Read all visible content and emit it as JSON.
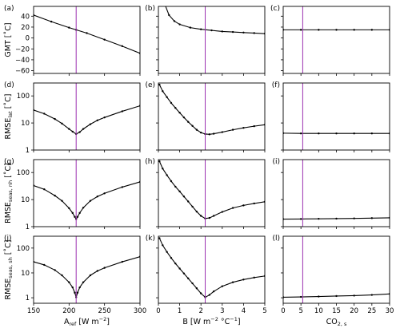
{
  "chart_data": {
    "type": "line",
    "marker_color": "#000000",
    "line_color": "#000000",
    "vline_color": "#9b30b0",
    "columns": [
      {
        "xlabel_main": "A",
        "xlabel_sub": "ref",
        "xlabel_units": " [W m",
        "xlabel_units_exp": "−2",
        "xlabel_units_end": "]",
        "xlim": [
          150,
          300
        ],
        "xticks": [
          150,
          200,
          250,
          300
        ],
        "xtick_labels": [
          "150",
          "200",
          "250",
          "300"
        ],
        "vline_x": 210
      },
      {
        "xlabel_main": "B [W m",
        "xlabel_sub": "",
        "xlabel_units": "",
        "xlabel_units_exp": "−2",
        "xlabel_units_end": " °C",
        "xlabel_units_exp2": "−1",
        "xlabel_units_end2": "]",
        "xlim": [
          0,
          5
        ],
        "xticks": [
          0,
          1,
          2,
          3,
          4,
          5
        ],
        "xtick_labels": [
          "0",
          "1",
          "2",
          "3",
          "4",
          "5"
        ],
        "vline_x": 2.2
      },
      {
        "xlabel_main": "CO",
        "xlabel_sub": "2, s",
        "xlabel_units": "",
        "xlabel_units_exp": "",
        "xlabel_units_end": "",
        "xlim": [
          0,
          30
        ],
        "xticks": [
          0,
          5,
          10,
          15,
          20,
          25,
          30
        ],
        "xtick_labels": [
          "0",
          "5",
          "10",
          "15",
          "20",
          "25",
          "30"
        ],
        "vline_x": 5.5
      }
    ],
    "rows": [
      {
        "ylabel_main": "GMT [˚C]",
        "ylabel_sub": "",
        "ylabel_end": "",
        "scale": "linear",
        "ylim": [
          -65,
          58
        ],
        "yticks": [
          -60,
          -40,
          -20,
          0,
          20,
          40
        ],
        "ytick_labels": [
          "−60",
          "−40",
          "−20",
          "0",
          "20",
          "40"
        ]
      },
      {
        "ylabel_main": "RMSE",
        "ylabel_sub": "lat",
        "ylabel_end": " [˚C]",
        "scale": "log",
        "ylim": [
          1,
          300
        ],
        "yticks": [
          1,
          10,
          100
        ],
        "ytick_labels": [
          "1",
          "10",
          "100"
        ]
      },
      {
        "ylabel_main": "RMSE",
        "ylabel_sub": "seas, nh",
        "ylabel_end": " [˚C]",
        "scale": "log",
        "ylim": [
          1,
          300
        ],
        "yticks": [
          1,
          10,
          100
        ],
        "ytick_labels": [
          "1",
          "10",
          "100"
        ]
      },
      {
        "ylabel_main": "RMSE",
        "ylabel_sub": "seas, sh",
        "ylabel_end": " [˚C]",
        "scale": "log",
        "ylim": [
          0.6,
          300
        ],
        "yticks": [
          1,
          10,
          100
        ],
        "ytick_labels": [
          "1",
          "10",
          "100"
        ]
      }
    ],
    "panels": [
      {
        "label": "(a)",
        "row": 0,
        "col": 0,
        "points": [
          [
            150,
            42
          ],
          [
            175,
            30
          ],
          [
            200,
            19
          ],
          [
            210,
            15
          ],
          [
            225,
            9
          ],
          [
            250,
            -3
          ],
          [
            275,
            -15
          ],
          [
            300,
            -28
          ]
        ]
      },
      {
        "label": "(b)",
        "row": 0,
        "col": 1,
        "points": [
          [
            0.3,
            62
          ],
          [
            0.5,
            42
          ],
          [
            0.75,
            31
          ],
          [
            1,
            25
          ],
          [
            1.5,
            19
          ],
          [
            2,
            16
          ],
          [
            2.5,
            14
          ],
          [
            3,
            12
          ],
          [
            3.5,
            11
          ],
          [
            4,
            10
          ],
          [
            4.5,
            9
          ],
          [
            5,
            8
          ]
        ]
      },
      {
        "label": "(c)",
        "row": 0,
        "col": 2,
        "points": [
          [
            0,
            15
          ],
          [
            5,
            15
          ],
          [
            10,
            15
          ],
          [
            15,
            15
          ],
          [
            20,
            15
          ],
          [
            25,
            15
          ],
          [
            30,
            15
          ]
        ]
      },
      {
        "label": "(d)",
        "row": 1,
        "col": 0,
        "points": [
          [
            150,
            30
          ],
          [
            165,
            22
          ],
          [
            180,
            14
          ],
          [
            190,
            9.5
          ],
          [
            200,
            6
          ],
          [
            205,
            4.8
          ],
          [
            210,
            3.9
          ],
          [
            215,
            4.6
          ],
          [
            220,
            6
          ],
          [
            230,
            9
          ],
          [
            240,
            12.5
          ],
          [
            250,
            16
          ],
          [
            275,
            27
          ],
          [
            300,
            43
          ]
        ]
      },
      {
        "label": "(e)",
        "row": 1,
        "col": 1,
        "points": [
          [
            0.05,
            260
          ],
          [
            0.2,
            150
          ],
          [
            0.4,
            90
          ],
          [
            0.6,
            55
          ],
          [
            0.8,
            36
          ],
          [
            1,
            24
          ],
          [
            1.2,
            16
          ],
          [
            1.4,
            11
          ],
          [
            1.6,
            7.8
          ],
          [
            1.8,
            5.6
          ],
          [
            2,
            4.4
          ],
          [
            2.2,
            3.9
          ],
          [
            2.4,
            3.8
          ],
          [
            2.6,
            4
          ],
          [
            3,
            4.6
          ],
          [
            3.5,
            5.6
          ],
          [
            4,
            6.6
          ],
          [
            4.5,
            7.6
          ],
          [
            5,
            8.6
          ]
        ]
      },
      {
        "label": "(f)",
        "row": 1,
        "col": 2,
        "points": [
          [
            0,
            4.2
          ],
          [
            5,
            4.1
          ],
          [
            10,
            4.1
          ],
          [
            15,
            4.1
          ],
          [
            20,
            4.1
          ],
          [
            25,
            4.1
          ],
          [
            30,
            4.1
          ]
        ]
      },
      {
        "label": "(g)",
        "row": 2,
        "col": 0,
        "points": [
          [
            150,
            33
          ],
          [
            165,
            24
          ],
          [
            180,
            14
          ],
          [
            190,
            9
          ],
          [
            200,
            4.8
          ],
          [
            205,
            3.2
          ],
          [
            208,
            2.3
          ],
          [
            210,
            1.9
          ],
          [
            212,
            2.3
          ],
          [
            215,
            3.2
          ],
          [
            220,
            5
          ],
          [
            230,
            9
          ],
          [
            240,
            13
          ],
          [
            250,
            17
          ],
          [
            275,
            29
          ],
          [
            300,
            45
          ]
        ]
      },
      {
        "label": "(h)",
        "row": 2,
        "col": 1,
        "points": [
          [
            0.05,
            260
          ],
          [
            0.2,
            140
          ],
          [
            0.4,
            80
          ],
          [
            0.6,
            48
          ],
          [
            0.8,
            30
          ],
          [
            1,
            20
          ],
          [
            1.2,
            13
          ],
          [
            1.4,
            8.5
          ],
          [
            1.6,
            5.5
          ],
          [
            1.8,
            3.6
          ],
          [
            2,
            2.5
          ],
          [
            2.2,
            2
          ],
          [
            2.4,
            2.1
          ],
          [
            2.6,
            2.5
          ],
          [
            3,
            3.5
          ],
          [
            3.5,
            4.9
          ],
          [
            4,
            6.1
          ],
          [
            4.5,
            7.2
          ],
          [
            5,
            8.3
          ]
        ]
      },
      {
        "label": "(i)",
        "row": 2,
        "col": 2,
        "points": [
          [
            0,
            1.9
          ],
          [
            5,
            1.92
          ],
          [
            10,
            1.95
          ],
          [
            15,
            1.98
          ],
          [
            20,
            2.02
          ],
          [
            25,
            2.06
          ],
          [
            30,
            2.12
          ]
        ]
      },
      {
        "label": "(j)",
        "row": 3,
        "col": 0,
        "points": [
          [
            150,
            28
          ],
          [
            165,
            21
          ],
          [
            180,
            13
          ],
          [
            190,
            8
          ],
          [
            200,
            4.2
          ],
          [
            205,
            2.6
          ],
          [
            208,
            1.6
          ],
          [
            210,
            1.05
          ],
          [
            212,
            1.6
          ],
          [
            215,
            2.6
          ],
          [
            220,
            4.2
          ],
          [
            230,
            8
          ],
          [
            240,
            12
          ],
          [
            250,
            16
          ],
          [
            275,
            28
          ],
          [
            300,
            45
          ]
        ]
      },
      {
        "label": "(k)",
        "row": 3,
        "col": 1,
        "points": [
          [
            0.05,
            250
          ],
          [
            0.2,
            130
          ],
          [
            0.4,
            70
          ],
          [
            0.6,
            40
          ],
          [
            0.8,
            24
          ],
          [
            1,
            15
          ],
          [
            1.2,
            9.5
          ],
          [
            1.4,
            6
          ],
          [
            1.6,
            3.8
          ],
          [
            1.8,
            2.4
          ],
          [
            2,
            1.5
          ],
          [
            2.2,
            1.05
          ],
          [
            2.4,
            1.3
          ],
          [
            2.6,
            1.8
          ],
          [
            3,
            2.9
          ],
          [
            3.5,
            4.2
          ],
          [
            4,
            5.4
          ],
          [
            4.5,
            6.5
          ],
          [
            5,
            7.5
          ]
        ]
      },
      {
        "label": "(l)",
        "row": 3,
        "col": 2,
        "points": [
          [
            0,
            1.05
          ],
          [
            5,
            1.08
          ],
          [
            10,
            1.12
          ],
          [
            15,
            1.17
          ],
          [
            20,
            1.22
          ],
          [
            25,
            1.3
          ],
          [
            30,
            1.42
          ]
        ]
      }
    ]
  }
}
